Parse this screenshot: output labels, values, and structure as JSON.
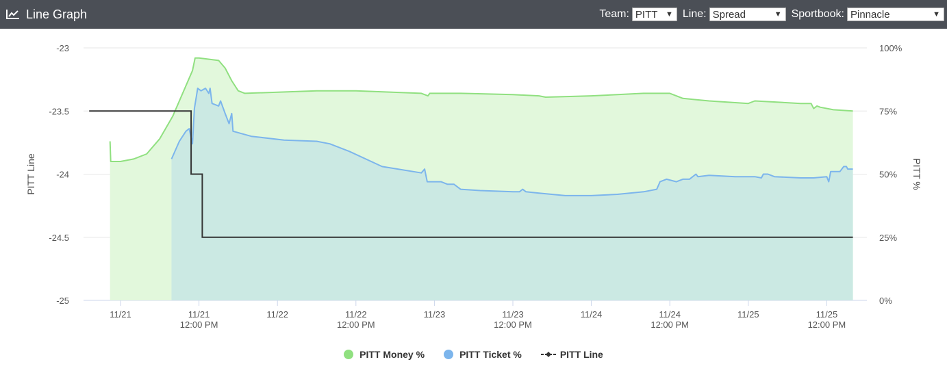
{
  "header": {
    "title": "Line Graph",
    "icon": "line-chart-icon",
    "team_label": "Team:",
    "team_value": "PITT",
    "line_label": "Line:",
    "line_value": "Spread",
    "book_label": "Sportbook:",
    "book_value": "Pinnacle"
  },
  "legend": {
    "money": "PITT Money %",
    "ticket": "PITT Ticket %",
    "line": "PITT Line"
  },
  "colors": {
    "money": "#90e080",
    "money_fill": "#e2f8dc",
    "ticket": "#7cb5ec",
    "ticket_fill": "#cbe9e3",
    "line": "#333333",
    "header": "#4b4f56"
  },
  "chart_data": {
    "type": "line",
    "xlim": [
      0,
      118
    ],
    "left_axis": {
      "label": "PITT Line",
      "ylim": [
        -25,
        -23
      ],
      "ticks": [
        "-23",
        "-23.5",
        "-24",
        "-24.5",
        "-25"
      ]
    },
    "right_axis": {
      "label": "PITT %",
      "ylim": [
        0,
        100
      ],
      "ticks": [
        "100%",
        "75%",
        "50%",
        "25%",
        "0%"
      ]
    },
    "x_ticks": [
      {
        "x": 0,
        "line1": "11/21",
        "line2": ""
      },
      {
        "x": 12,
        "line1": "11/21",
        "line2": "12:00 PM"
      },
      {
        "x": 24,
        "line1": "11/22",
        "line2": ""
      },
      {
        "x": 36,
        "line1": "11/22",
        "line2": "12:00 PM"
      },
      {
        "x": 48,
        "line1": "11/23",
        "line2": ""
      },
      {
        "x": 60,
        "line1": "11/23",
        "line2": "12:00 PM"
      },
      {
        "x": 72,
        "line1": "11/24",
        "line2": ""
      },
      {
        "x": 84,
        "line1": "11/24",
        "line2": "12:00 PM"
      },
      {
        "x": 96,
        "line1": "11/25",
        "line2": ""
      },
      {
        "x": 108,
        "line1": "11/25",
        "line2": "12:00 PM"
      }
    ],
    "grid": true,
    "legend_position": "bottom",
    "series": [
      {
        "name": "PITT Money %",
        "axis": "right",
        "type": "area",
        "points": [
          [
            -1.6,
            63
          ],
          [
            -1.5,
            55
          ],
          [
            0,
            55
          ],
          [
            2,
            56
          ],
          [
            4,
            58
          ],
          [
            6,
            64
          ],
          [
            8,
            73
          ],
          [
            10,
            85
          ],
          [
            11,
            91
          ],
          [
            11.4,
            96
          ],
          [
            12,
            96
          ],
          [
            15,
            95
          ],
          [
            16,
            92
          ],
          [
            17,
            87
          ],
          [
            18,
            83
          ],
          [
            19,
            82
          ],
          [
            30,
            83
          ],
          [
            36,
            83
          ],
          [
            46,
            82
          ],
          [
            47,
            81
          ],
          [
            47.3,
            82
          ],
          [
            52,
            82
          ],
          [
            60,
            81.5
          ],
          [
            64,
            81
          ],
          [
            65,
            80.5
          ],
          [
            72,
            81
          ],
          [
            80,
            82
          ],
          [
            84,
            82
          ],
          [
            86,
            80
          ],
          [
            90,
            79
          ],
          [
            96,
            78
          ],
          [
            97,
            79
          ],
          [
            104,
            78
          ],
          [
            105.6,
            78
          ],
          [
            106,
            76
          ],
          [
            106.5,
            77
          ],
          [
            107,
            76.5
          ],
          [
            109,
            75.5
          ],
          [
            112,
            75
          ]
        ]
      },
      {
        "name": "PITT Ticket %",
        "axis": "right",
        "type": "area",
        "points": [
          [
            7.8,
            56
          ],
          [
            9,
            63
          ],
          [
            10,
            67
          ],
          [
            10.5,
            68
          ],
          [
            11,
            62
          ],
          [
            11.3,
            76
          ],
          [
            11.8,
            84
          ],
          [
            12.3,
            83
          ],
          [
            13,
            84
          ],
          [
            13.5,
            82
          ],
          [
            13.7,
            84
          ],
          [
            14,
            78
          ],
          [
            15,
            77
          ],
          [
            15.3,
            79
          ],
          [
            16,
            74
          ],
          [
            16.6,
            70
          ],
          [
            17,
            74
          ],
          [
            17.2,
            67
          ],
          [
            20,
            65
          ],
          [
            25,
            63.5
          ],
          [
            30,
            63
          ],
          [
            32,
            62
          ],
          [
            35,
            59
          ],
          [
            40,
            53
          ],
          [
            46,
            50.5
          ],
          [
            46.5,
            52
          ],
          [
            46.9,
            47
          ],
          [
            48.5,
            47
          ],
          [
            49,
            47
          ],
          [
            50,
            46
          ],
          [
            51,
            46
          ],
          [
            52,
            44
          ],
          [
            55,
            43.5
          ],
          [
            60,
            43
          ],
          [
            61,
            43
          ],
          [
            61.5,
            44
          ],
          [
            62,
            43
          ],
          [
            64,
            42.5
          ],
          [
            68,
            41.5
          ],
          [
            72,
            41.5
          ],
          [
            76,
            42
          ],
          [
            80,
            43
          ],
          [
            82,
            44
          ],
          [
            82.5,
            47
          ],
          [
            83.5,
            48
          ],
          [
            85,
            47
          ],
          [
            86,
            48
          ],
          [
            87,
            48
          ],
          [
            88,
            50
          ],
          [
            88.3,
            49
          ],
          [
            90,
            49.5
          ],
          [
            94,
            49
          ],
          [
            97,
            49
          ],
          [
            98,
            48.5
          ],
          [
            98.3,
            50
          ],
          [
            99,
            50
          ],
          [
            100,
            49
          ],
          [
            104,
            48.5
          ],
          [
            106,
            48.5
          ],
          [
            108,
            49
          ],
          [
            108.3,
            47
          ],
          [
            108.6,
            51
          ],
          [
            110,
            51
          ],
          [
            110.6,
            53
          ],
          [
            111,
            53
          ],
          [
            111.2,
            52
          ],
          [
            112,
            52
          ]
        ]
      },
      {
        "name": "PITT Line",
        "axis": "left",
        "type": "step",
        "points": [
          [
            -4.8,
            -23.5
          ],
          [
            10.8,
            -23.5
          ],
          [
            10.8,
            -24
          ],
          [
            12.5,
            -24
          ],
          [
            12.5,
            -24.5
          ],
          [
            112,
            -24.5
          ]
        ]
      }
    ]
  }
}
